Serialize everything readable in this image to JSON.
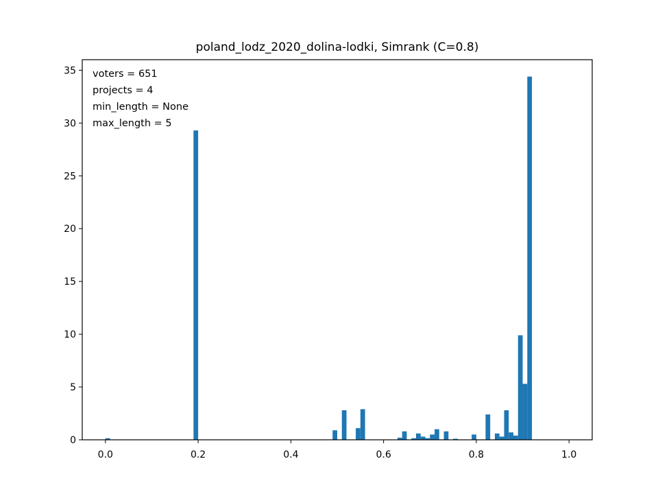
{
  "chart_data": {
    "type": "bar",
    "title": "poland_lodz_2020_dolina-lodki, Simrank (C=0.8)",
    "xlabel": "",
    "ylabel": "",
    "xlim": [
      -0.05,
      1.05
    ],
    "ylim": [
      0,
      36
    ],
    "grid": false,
    "bar_color": "#1f77b4",
    "bin_width": 0.01,
    "x_ticks": [
      0.0,
      0.2,
      0.4,
      0.6,
      0.8,
      1.0
    ],
    "x_tick_labels": [
      "0.0",
      "0.2",
      "0.4",
      "0.6",
      "0.8",
      "1.0"
    ],
    "y_ticks": [
      0,
      5,
      10,
      15,
      20,
      25,
      30,
      35
    ],
    "y_tick_labels": [
      "0",
      "5",
      "10",
      "15",
      "20",
      "25",
      "30",
      "35"
    ],
    "annotations": [
      "voters = 651",
      "projects = 4",
      "min_length = None",
      "max_length = 5"
    ],
    "bins": [
      {
        "x": 0.0,
        "value": 0.15
      },
      {
        "x": 0.19,
        "value": 29.3
      },
      {
        "x": 0.49,
        "value": 0.9
      },
      {
        "x": 0.51,
        "value": 2.8
      },
      {
        "x": 0.54,
        "value": 1.1
      },
      {
        "x": 0.55,
        "value": 2.9
      },
      {
        "x": 0.63,
        "value": 0.2
      },
      {
        "x": 0.64,
        "value": 0.8
      },
      {
        "x": 0.66,
        "value": 0.15
      },
      {
        "x": 0.67,
        "value": 0.6
      },
      {
        "x": 0.68,
        "value": 0.3
      },
      {
        "x": 0.69,
        "value": 0.15
      },
      {
        "x": 0.7,
        "value": 0.5
      },
      {
        "x": 0.71,
        "value": 1.0
      },
      {
        "x": 0.73,
        "value": 0.8
      },
      {
        "x": 0.75,
        "value": 0.1
      },
      {
        "x": 0.79,
        "value": 0.5
      },
      {
        "x": 0.82,
        "value": 2.4
      },
      {
        "x": 0.84,
        "value": 0.6
      },
      {
        "x": 0.85,
        "value": 0.3
      },
      {
        "x": 0.86,
        "value": 2.8
      },
      {
        "x": 0.87,
        "value": 0.7
      },
      {
        "x": 0.88,
        "value": 0.4
      },
      {
        "x": 0.89,
        "value": 9.9
      },
      {
        "x": 0.9,
        "value": 5.3
      },
      {
        "x": 0.91,
        "value": 34.4
      }
    ]
  }
}
